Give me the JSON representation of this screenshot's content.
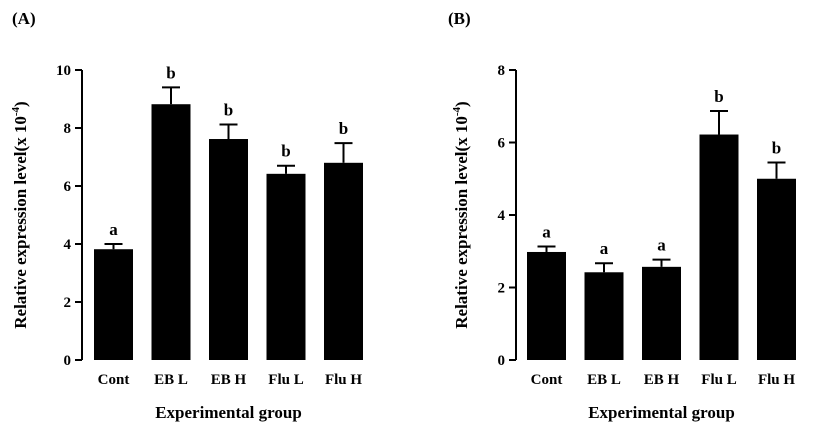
{
  "chart_data": [
    {
      "type": "bar",
      "panel": "(A)",
      "categories": [
        "Cont",
        "EB L",
        "EB H",
        "Flu L",
        "Flu H"
      ],
      "values": [
        3.82,
        8.82,
        7.62,
        6.42,
        6.8
      ],
      "errors": [
        0.18,
        0.58,
        0.5,
        0.28,
        0.68
      ],
      "significance": [
        "a",
        "b",
        "b",
        "b",
        "b"
      ],
      "xlabel": "Experimental group",
      "ylabel": "Relative expression level(x 10",
      "ylabel_sup": "-4",
      "ylabel_close": ")",
      "ylim": [
        0,
        10
      ],
      "yticks": [
        "0",
        "2",
        "4",
        "6",
        "8",
        "10"
      ],
      "grid": false,
      "bar_color": "#000000"
    },
    {
      "type": "bar",
      "panel": "(B)",
      "categories": [
        "Cont",
        "EB L",
        "EB H",
        "Flu L",
        "Flu H"
      ],
      "values": [
        2.98,
        2.42,
        2.57,
        6.22,
        5.0
      ],
      "errors": [
        0.15,
        0.25,
        0.2,
        0.65,
        0.45
      ],
      "significance": [
        "a",
        "a",
        "a",
        "b",
        "b"
      ],
      "xlabel": "Experimental group",
      "ylabel": "Relative expression level(x 10",
      "ylabel_sup": "-4",
      "ylabel_close": ")",
      "ylim": [
        0,
        8
      ],
      "yticks": [
        "0",
        "2",
        "4",
        "6",
        "8"
      ],
      "grid": false,
      "bar_color": "#000000"
    }
  ]
}
